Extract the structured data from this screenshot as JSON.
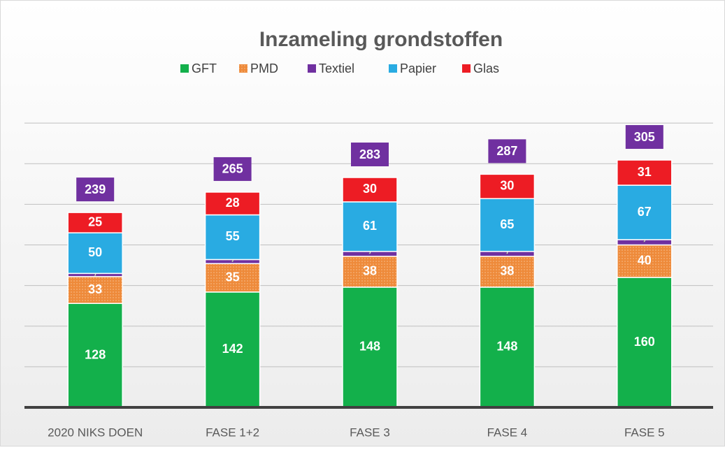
{
  "chart_data": {
    "type": "stacked_bar",
    "title": "Inzameling grondstoffen",
    "categories": [
      "2020 NIKS DOEN",
      "FASE 1+2",
      "FASE 3",
      "FASE 4",
      "FASE 5"
    ],
    "series": [
      {
        "name": "GFT",
        "color": "#13b04b",
        "values": [
          128,
          142,
          148,
          148,
          160
        ]
      },
      {
        "name": "PMD",
        "color": "#ee8a3a",
        "values": [
          33,
          35,
          38,
          38,
          40
        ]
      },
      {
        "name": "Textiel",
        "color": "#7030a0",
        "values": [
          3.9,
          5.0,
          6.0,
          6.0,
          6.5
        ],
        "value_labels": [
          "3,9",
          "5,0",
          "6,0",
          "6,0",
          "6,5"
        ]
      },
      {
        "name": "Papier",
        "color": "#29abe2",
        "values": [
          50,
          55,
          61,
          65,
          67
        ]
      },
      {
        "name": "Glas",
        "color": "#ed1c24",
        "values": [
          25,
          28,
          30,
          30,
          31
        ]
      }
    ],
    "totals": [
      239,
      265,
      283,
      287,
      305
    ],
    "total_color": "#7030a0",
    "ylim": [
      0,
      400
    ],
    "yticks": [
      0,
      50,
      100,
      150,
      200,
      250,
      300,
      350
    ],
    "grid": true
  }
}
